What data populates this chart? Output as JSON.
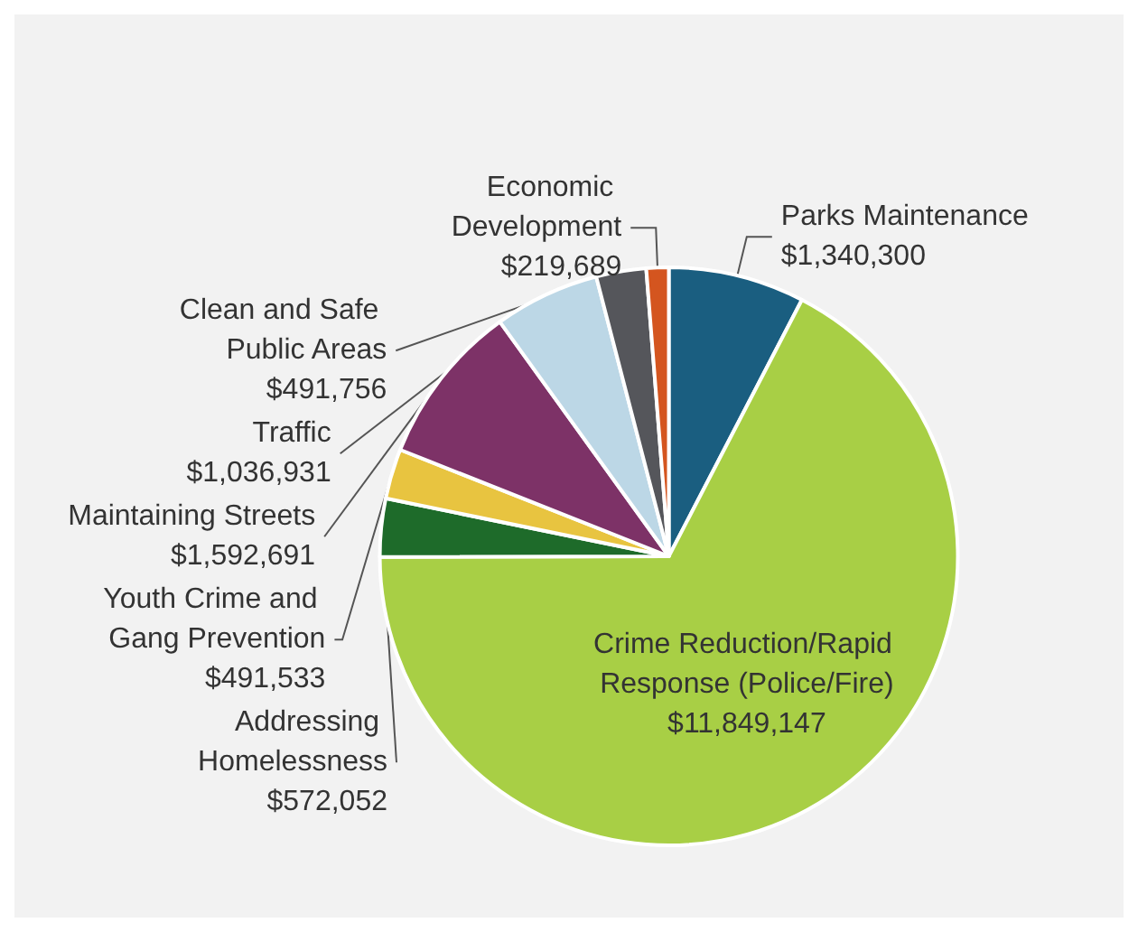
{
  "chart_data": {
    "type": "pie",
    "categories": [
      "Parks Maintenance",
      "Crime Reduction/Rapid Response (Police/Fire)",
      "Addressing Homelessness",
      "Youth Crime and Gang Prevention",
      "Maintaining Streets",
      "Traffic",
      "Clean and Safe Public Areas",
      "Economic Development"
    ],
    "values": [
      1340300,
      11849147,
      572052,
      491533,
      1592691,
      1036931,
      491756,
      219689
    ],
    "value_labels": [
      "$1,340,300",
      "$11,849,147",
      "$572,052",
      "$491,533",
      "$1,592,691",
      "$1,036,931",
      "$491,756",
      "$219,689"
    ],
    "colors": [
      "#1a5e80",
      "#a8cf45",
      "#1e6b2a",
      "#e8c440",
      "#7d3267",
      "#bcd7e6",
      "#55565b",
      "#d4551f"
    ],
    "legend": false
  }
}
